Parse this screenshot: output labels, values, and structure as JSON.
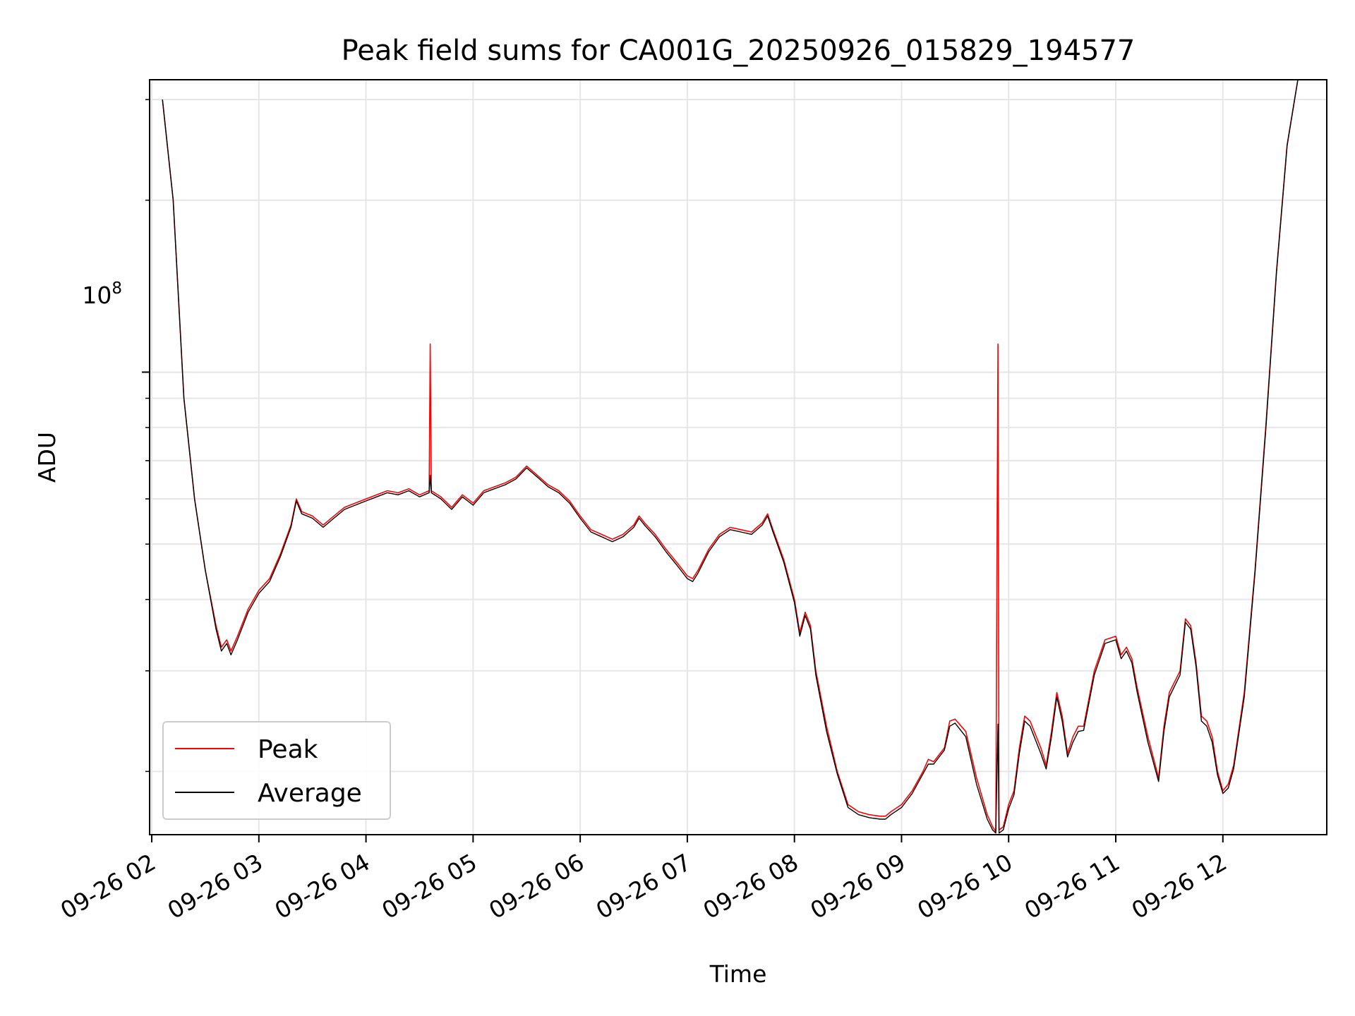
{
  "chart_data": {
    "type": "line",
    "title": "Peak field sums for CA001G_20250926_015829_194577",
    "xlabel": "Time",
    "ylabel": "ADU",
    "y_scale": "log",
    "ylim": [
      15500000,
      325000000
    ],
    "xlim_hours": [
      1.98,
      12.97
    ],
    "x_ticks": [
      {
        "hour": 2,
        "label": "09-26 02"
      },
      {
        "hour": 3,
        "label": "09-26 03"
      },
      {
        "hour": 4,
        "label": "09-26 04"
      },
      {
        "hour": 5,
        "label": "09-26 05"
      },
      {
        "hour": 6,
        "label": "09-26 06"
      },
      {
        "hour": 7,
        "label": "09-26 07"
      },
      {
        "hour": 8,
        "label": "09-26 08"
      },
      {
        "hour": 9,
        "label": "09-26 09"
      },
      {
        "hour": 10,
        "label": "09-26 10"
      },
      {
        "hour": 11,
        "label": "09-26 11"
      },
      {
        "hour": 12,
        "label": "09-26 12"
      }
    ],
    "y_major_tick": {
      "value": 100000000,
      "label_base": "10",
      "label_exp": "8"
    },
    "y_minor_ticks": [
      20000000,
      30000000,
      40000000,
      50000000,
      60000000,
      70000000,
      80000000,
      90000000,
      200000000,
      300000000
    ],
    "grid": true,
    "legend_position": "lower-left",
    "series": [
      {
        "name": "Peak",
        "color": "#ff0000",
        "points": [
          [
            2.1,
            300000000
          ],
          [
            2.2,
            200000000
          ],
          [
            2.3,
            90000000
          ],
          [
            2.4,
            60000000
          ],
          [
            2.5,
            45000000
          ],
          [
            2.6,
            36000000
          ],
          [
            2.65,
            33000000
          ],
          [
            2.7,
            34000000
          ],
          [
            2.74,
            32500000
          ],
          [
            2.8,
            34500000
          ],
          [
            2.9,
            38500000
          ],
          [
            3.0,
            41500000
          ],
          [
            3.1,
            43500000
          ],
          [
            3.2,
            48000000
          ],
          [
            3.3,
            54000000
          ],
          [
            3.35,
            60000000
          ],
          [
            3.4,
            57000000
          ],
          [
            3.5,
            56000000
          ],
          [
            3.6,
            54000000
          ],
          [
            3.7,
            56000000
          ],
          [
            3.8,
            58000000
          ],
          [
            3.9,
            59000000
          ],
          [
            4.0,
            60000000
          ],
          [
            4.1,
            61000000
          ],
          [
            4.2,
            62000000
          ],
          [
            4.3,
            61500000
          ],
          [
            4.4,
            62500000
          ],
          [
            4.5,
            61000000
          ],
          [
            4.59,
            62000000
          ],
          [
            4.6,
            112000000
          ],
          [
            4.61,
            62000000
          ],
          [
            4.7,
            60500000
          ],
          [
            4.8,
            58000000
          ],
          [
            4.9,
            61000000
          ],
          [
            5.0,
            59000000
          ],
          [
            5.1,
            62000000
          ],
          [
            5.2,
            63000000
          ],
          [
            5.3,
            64000000
          ],
          [
            5.4,
            65500000
          ],
          [
            5.5,
            68500000
          ],
          [
            5.6,
            66000000
          ],
          [
            5.7,
            63500000
          ],
          [
            5.8,
            62000000
          ],
          [
            5.9,
            59500000
          ],
          [
            6.0,
            56000000
          ],
          [
            6.1,
            53000000
          ],
          [
            6.2,
            52000000
          ],
          [
            6.3,
            51000000
          ],
          [
            6.4,
            52000000
          ],
          [
            6.5,
            54000000
          ],
          [
            6.55,
            56000000
          ],
          [
            6.6,
            54500000
          ],
          [
            6.7,
            52000000
          ],
          [
            6.8,
            49000000
          ],
          [
            6.9,
            46500000
          ],
          [
            7.0,
            44000000
          ],
          [
            7.05,
            43500000
          ],
          [
            7.1,
            45000000
          ],
          [
            7.2,
            49000000
          ],
          [
            7.3,
            52000000
          ],
          [
            7.4,
            53500000
          ],
          [
            7.5,
            53000000
          ],
          [
            7.6,
            52500000
          ],
          [
            7.7,
            54500000
          ],
          [
            7.75,
            56500000
          ],
          [
            7.8,
            53000000
          ],
          [
            7.9,
            47000000
          ],
          [
            8.0,
            40000000
          ],
          [
            8.05,
            35000000
          ],
          [
            8.1,
            38000000
          ],
          [
            8.15,
            36000000
          ],
          [
            8.2,
            30000000
          ],
          [
            8.3,
            24000000
          ],
          [
            8.4,
            20000000
          ],
          [
            8.5,
            17500000
          ],
          [
            8.6,
            17000000
          ],
          [
            8.7,
            16800000
          ],
          [
            8.8,
            16700000
          ],
          [
            8.85,
            16700000
          ],
          [
            8.9,
            17000000
          ],
          [
            9.0,
            17500000
          ],
          [
            9.1,
            18500000
          ],
          [
            9.2,
            20000000
          ],
          [
            9.25,
            21000000
          ],
          [
            9.3,
            20800000
          ],
          [
            9.4,
            22000000
          ],
          [
            9.45,
            24500000
          ],
          [
            9.5,
            24700000
          ],
          [
            9.6,
            23500000
          ],
          [
            9.7,
            19500000
          ],
          [
            9.8,
            16800000
          ],
          [
            9.85,
            16000000
          ],
          [
            9.88,
            15700000
          ],
          [
            9.9,
            112000000
          ],
          [
            9.91,
            15800000
          ],
          [
            9.95,
            16000000
          ],
          [
            10.0,
            17500000
          ],
          [
            10.05,
            18500000
          ],
          [
            10.1,
            22000000
          ],
          [
            10.15,
            25000000
          ],
          [
            10.2,
            24500000
          ],
          [
            10.3,
            22000000
          ],
          [
            10.35,
            20500000
          ],
          [
            10.4,
            23500000
          ],
          [
            10.45,
            27500000
          ],
          [
            10.5,
            25000000
          ],
          [
            10.55,
            21500000
          ],
          [
            10.6,
            23000000
          ],
          [
            10.65,
            24000000
          ],
          [
            10.7,
            24000000
          ],
          [
            10.8,
            30000000
          ],
          [
            10.9,
            34000000
          ],
          [
            11.0,
            34500000
          ],
          [
            11.05,
            32000000
          ],
          [
            11.1,
            33000000
          ],
          [
            11.15,
            31500000
          ],
          [
            11.2,
            28000000
          ],
          [
            11.3,
            23000000
          ],
          [
            11.4,
            19500000
          ],
          [
            11.45,
            24000000
          ],
          [
            11.5,
            27500000
          ],
          [
            11.6,
            30000000
          ],
          [
            11.65,
            37000000
          ],
          [
            11.7,
            36000000
          ],
          [
            11.75,
            31000000
          ],
          [
            11.8,
            25000000
          ],
          [
            11.85,
            24500000
          ],
          [
            11.9,
            23000000
          ],
          [
            11.95,
            20000000
          ],
          [
            12.0,
            18500000
          ],
          [
            12.05,
            19000000
          ],
          [
            12.1,
            20500000
          ],
          [
            12.2,
            27500000
          ],
          [
            12.3,
            45000000
          ],
          [
            12.4,
            80000000
          ],
          [
            12.5,
            150000000
          ],
          [
            12.6,
            250000000
          ],
          [
            12.7,
            325000000
          ]
        ]
      },
      {
        "name": "Average",
        "color": "#000000",
        "points": [
          [
            2.1,
            300000000
          ],
          [
            2.2,
            200000000
          ],
          [
            2.3,
            90000000
          ],
          [
            2.4,
            60000000
          ],
          [
            2.5,
            45000000
          ],
          [
            2.6,
            35500000
          ],
          [
            2.65,
            32500000
          ],
          [
            2.7,
            33500000
          ],
          [
            2.74,
            32000000
          ],
          [
            2.8,
            34000000
          ],
          [
            2.9,
            38000000
          ],
          [
            3.0,
            41000000
          ],
          [
            3.1,
            43000000
          ],
          [
            3.2,
            47500000
          ],
          [
            3.3,
            53500000
          ],
          [
            3.35,
            59500000
          ],
          [
            3.4,
            56500000
          ],
          [
            3.5,
            55500000
          ],
          [
            3.6,
            53500000
          ],
          [
            3.7,
            55500000
          ],
          [
            3.8,
            57500000
          ],
          [
            3.9,
            58500000
          ],
          [
            4.0,
            59500000
          ],
          [
            4.1,
            60500000
          ],
          [
            4.2,
            61500000
          ],
          [
            4.3,
            61000000
          ],
          [
            4.4,
            62000000
          ],
          [
            4.5,
            60500000
          ],
          [
            4.59,
            61500000
          ],
          [
            4.6,
            66000000
          ],
          [
            4.61,
            61500000
          ],
          [
            4.7,
            60000000
          ],
          [
            4.8,
            57500000
          ],
          [
            4.9,
            60500000
          ],
          [
            5.0,
            58500000
          ],
          [
            5.1,
            61500000
          ],
          [
            5.2,
            62500000
          ],
          [
            5.3,
            63500000
          ],
          [
            5.4,
            65000000
          ],
          [
            5.5,
            68000000
          ],
          [
            5.6,
            65500000
          ],
          [
            5.7,
            63000000
          ],
          [
            5.8,
            61500000
          ],
          [
            5.9,
            59000000
          ],
          [
            6.0,
            55500000
          ],
          [
            6.1,
            52500000
          ],
          [
            6.2,
            51500000
          ],
          [
            6.3,
            50500000
          ],
          [
            6.4,
            51500000
          ],
          [
            6.5,
            53500000
          ],
          [
            6.55,
            55500000
          ],
          [
            6.6,
            54000000
          ],
          [
            6.7,
            51500000
          ],
          [
            6.8,
            48500000
          ],
          [
            6.9,
            46000000
          ],
          [
            7.0,
            43500000
          ],
          [
            7.05,
            43000000
          ],
          [
            7.1,
            44500000
          ],
          [
            7.2,
            48500000
          ],
          [
            7.3,
            51500000
          ],
          [
            7.4,
            53000000
          ],
          [
            7.5,
            52500000
          ],
          [
            7.6,
            52000000
          ],
          [
            7.7,
            54000000
          ],
          [
            7.75,
            56000000
          ],
          [
            7.8,
            52500000
          ],
          [
            7.9,
            46500000
          ],
          [
            8.0,
            39500000
          ],
          [
            8.05,
            34500000
          ],
          [
            8.1,
            37500000
          ],
          [
            8.15,
            35500000
          ],
          [
            8.2,
            29500000
          ],
          [
            8.3,
            23500000
          ],
          [
            8.4,
            19800000
          ],
          [
            8.5,
            17300000
          ],
          [
            8.6,
            16800000
          ],
          [
            8.7,
            16600000
          ],
          [
            8.8,
            16500000
          ],
          [
            8.85,
            16500000
          ],
          [
            8.9,
            16800000
          ],
          [
            9.0,
            17300000
          ],
          [
            9.1,
            18300000
          ],
          [
            9.2,
            19800000
          ],
          [
            9.25,
            20600000
          ],
          [
            9.3,
            20600000
          ],
          [
            9.4,
            21800000
          ],
          [
            9.45,
            24000000
          ],
          [
            9.5,
            24300000
          ],
          [
            9.6,
            23000000
          ],
          [
            9.7,
            19000000
          ],
          [
            9.8,
            16500000
          ],
          [
            9.85,
            15800000
          ],
          [
            9.88,
            15600000
          ],
          [
            9.9,
            24200000
          ],
          [
            9.91,
            15600000
          ],
          [
            9.95,
            15800000
          ],
          [
            10.0,
            17200000
          ],
          [
            10.05,
            18200000
          ],
          [
            10.1,
            21500000
          ],
          [
            10.15,
            24500000
          ],
          [
            10.2,
            24000000
          ],
          [
            10.3,
            21500000
          ],
          [
            10.35,
            20200000
          ],
          [
            10.4,
            23000000
          ],
          [
            10.45,
            27000000
          ],
          [
            10.5,
            24500000
          ],
          [
            10.55,
            21200000
          ],
          [
            10.6,
            22500000
          ],
          [
            10.65,
            23500000
          ],
          [
            10.7,
            23600000
          ],
          [
            10.8,
            29500000
          ],
          [
            10.9,
            33500000
          ],
          [
            11.0,
            34000000
          ],
          [
            11.05,
            31500000
          ],
          [
            11.1,
            32500000
          ],
          [
            11.15,
            31000000
          ],
          [
            11.2,
            27500000
          ],
          [
            11.3,
            22500000
          ],
          [
            11.4,
            19200000
          ],
          [
            11.45,
            23500000
          ],
          [
            11.5,
            27000000
          ],
          [
            11.6,
            29500000
          ],
          [
            11.65,
            36500000
          ],
          [
            11.7,
            35500000
          ],
          [
            11.75,
            30500000
          ],
          [
            11.8,
            24500000
          ],
          [
            11.85,
            24000000
          ],
          [
            11.9,
            22500000
          ],
          [
            11.95,
            19700000
          ],
          [
            12.0,
            18300000
          ],
          [
            12.05,
            18700000
          ],
          [
            12.1,
            20200000
          ],
          [
            12.2,
            27000000
          ],
          [
            12.3,
            44500000
          ],
          [
            12.4,
            79000000
          ],
          [
            12.5,
            149000000
          ],
          [
            12.6,
            249000000
          ],
          [
            12.7,
            325000000
          ]
        ]
      }
    ]
  }
}
